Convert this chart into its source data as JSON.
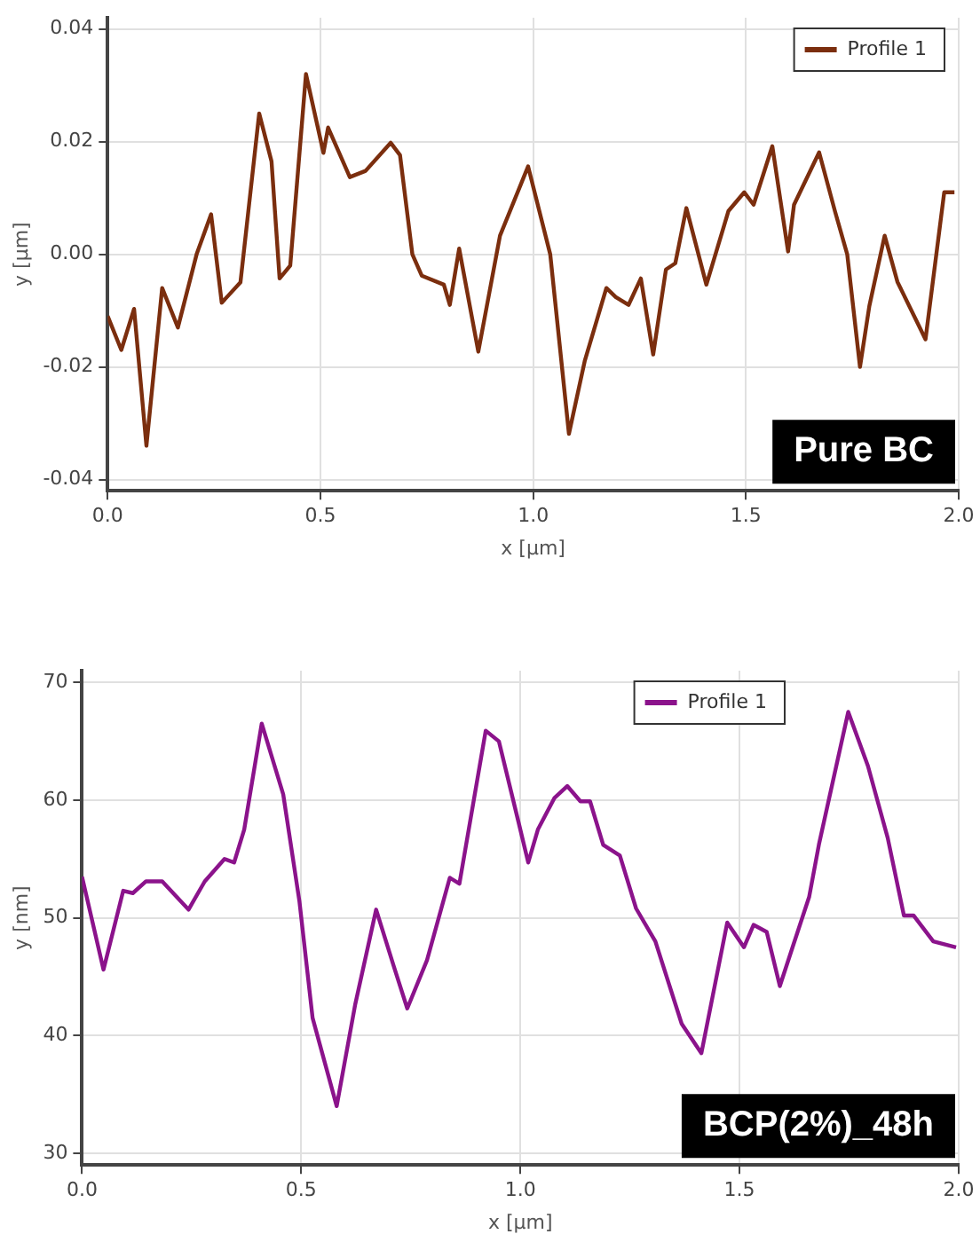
{
  "chart_data": [
    {
      "type": "line",
      "xlabel": "x [µm]",
      "ylabel": "y [µm]",
      "annotations": [
        "Pure BC"
      ],
      "legend": "top right",
      "grid": true,
      "marker": "none",
      "line_style": "solid",
      "xlim": [
        0,
        2
      ],
      "xticks": [
        {
          "value": 0,
          "label": "0.0"
        },
        {
          "value": 0.5,
          "label": "0.5"
        },
        {
          "value": 1,
          "label": "1.0"
        },
        {
          "value": 1.5,
          "label": "1.5"
        },
        {
          "value": 2,
          "label": "2.0"
        }
      ],
      "ylim": [
        -0.042,
        0.042
      ],
      "yticks": [
        {
          "value": -0.04,
          "label": "-0.04"
        },
        {
          "value": -0.02,
          "label": "-0.02"
        },
        {
          "value": 0,
          "label": "0.00"
        },
        {
          "value": 0.02,
          "label": "0.02"
        },
        {
          "value": 0.04,
          "label": "0.04"
        }
      ],
      "series": [
        {
          "name": "Profile 1",
          "color": "#7b2e0e",
          "x": [
            0,
            0.032,
            0.062,
            0.091,
            0.128,
            0.165,
            0.209,
            0.243,
            0.268,
            0.312,
            0.356,
            0.385,
            0.404,
            0.429,
            0.466,
            0.507,
            0.518,
            0.569,
            0.606,
            0.665,
            0.687,
            0.716,
            0.738,
            0.79,
            0.804,
            0.826,
            0.871,
            0.922,
            0.988,
            1.04,
            1.084,
            1.121,
            1.172,
            1.194,
            1.224,
            1.253,
            1.282,
            1.312,
            1.334,
            1.36,
            1.407,
            1.459,
            1.496,
            1.518,
            1.562,
            1.599,
            1.613,
            1.672,
            1.709,
            1.738,
            1.768,
            1.79,
            1.826,
            1.856,
            1.922,
            1.966,
            1.99
          ],
          "values": [
            -0.011,
            -0.017,
            -0.0097,
            -0.034,
            -0.006,
            -0.013,
            0.0,
            0.0071,
            -0.0086,
            -0.005,
            0.025,
            0.0165,
            -0.0043,
            -0.002,
            0.032,
            0.018,
            0.0225,
            0.0137,
            0.0148,
            0.0198,
            0.0176,
            0.0,
            -0.0038,
            -0.0054,
            -0.009,
            0.001,
            -0.0173,
            0.0033,
            0.0156,
            0.0,
            -0.0319,
            -0.019,
            -0.006,
            -0.0076,
            -0.009,
            -0.0043,
            -0.0178,
            -0.0027,
            -0.0016,
            0.0082,
            -0.0054,
            0.0077,
            0.011,
            0.0088,
            0.0192,
            0.0005,
            0.0088,
            0.0181,
            0.0077,
            0.0,
            -0.02,
            -0.0092,
            0.0033,
            -0.0049,
            -0.0151,
            0.011,
            0.011
          ]
        }
      ]
    },
    {
      "type": "line",
      "xlabel": "x [µm]",
      "ylabel": "y [nm]",
      "annotations": [
        "BCP(2%)_48h"
      ],
      "legend": "top right",
      "grid": true,
      "marker": "none",
      "line_style": "solid",
      "xlim": [
        0,
        2
      ],
      "xticks": [
        {
          "value": 0,
          "label": "0.0"
        },
        {
          "value": 0.5,
          "label": "0.5"
        },
        {
          "value": 1,
          "label": "1.0"
        },
        {
          "value": 1.5,
          "label": "1.5"
        },
        {
          "value": 2,
          "label": "2.0"
        }
      ],
      "ylim": [
        29,
        71
      ],
      "yticks": [
        30,
        40,
        50,
        60,
        70
      ],
      "series": [
        {
          "name": "Profile 1",
          "color": "#8b138b",
          "x": [
            0,
            0.049,
            0.094,
            0.116,
            0.146,
            0.183,
            0.243,
            0.28,
            0.325,
            0.347,
            0.37,
            0.41,
            0.459,
            0.496,
            0.526,
            0.581,
            0.623,
            0.671,
            0.712,
            0.742,
            0.787,
            0.839,
            0.861,
            0.921,
            0.951,
            0.996,
            1.018,
            1.04,
            1.078,
            1.107,
            1.137,
            1.159,
            1.189,
            1.227,
            1.264,
            1.308,
            1.368,
            1.413,
            1.472,
            1.51,
            1.532,
            1.562,
            1.592,
            1.621,
            1.659,
            1.681,
            1.748,
            1.793,
            1.838,
            1.875,
            1.897,
            1.942,
            1.994
          ],
          "values": [
            53.5,
            45.6,
            52.3,
            52.1,
            53.1,
            53.1,
            50.7,
            53.1,
            55.0,
            54.7,
            57.5,
            66.5,
            60.5,
            51.4,
            41.5,
            34.0,
            42.6,
            50.7,
            45.8,
            42.3,
            46.4,
            53.4,
            52.9,
            65.9,
            65.0,
            58.1,
            54.7,
            57.5,
            60.2,
            61.2,
            59.9,
            59.9,
            56.2,
            55.3,
            50.8,
            48.0,
            41.0,
            38.5,
            49.6,
            47.5,
            49.4,
            48.8,
            44.2,
            47.5,
            51.8,
            56.2,
            67.5,
            62.9,
            56.8,
            50.2,
            50.2,
            48.0,
            47.5
          ]
        }
      ]
    }
  ]
}
